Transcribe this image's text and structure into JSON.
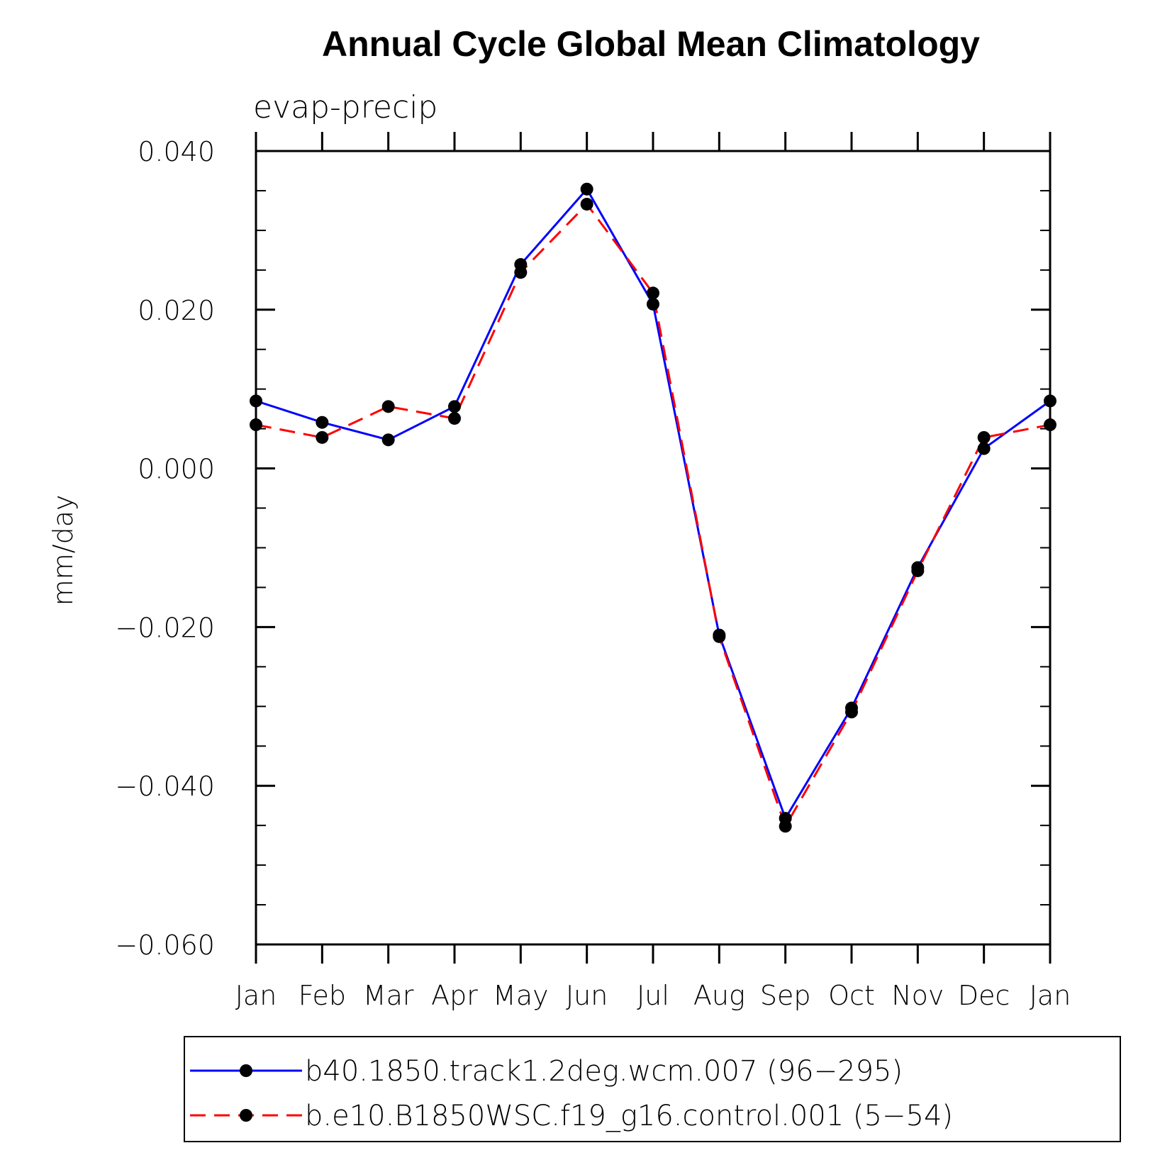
{
  "chart_data": {
    "type": "line",
    "title": "Annual Cycle Global Mean Climatology",
    "subtitle": "evap-precip",
    "ylabel": "mm/day",
    "xlabel": "",
    "ylim": [
      -0.06,
      0.04
    ],
    "yticks": [
      "0.040",
      "0.020",
      "0.000",
      "−0.020",
      "−0.040",
      "−0.060"
    ],
    "ytick_values": [
      0.04,
      0.02,
      0.0,
      -0.02,
      -0.04,
      -0.06
    ],
    "categories": [
      "Jan",
      "Feb",
      "Mar",
      "Apr",
      "May",
      "Jun",
      "Jul",
      "Aug",
      "Sep",
      "Oct",
      "Nov",
      "Dec",
      "Jan"
    ],
    "grid": false,
    "legend_position": "bottom",
    "series": [
      {
        "name": "b40.1850.track1.2deg.wcm.007 (96−295)",
        "color": "#0000ff",
        "dash": "solid",
        "marker": "filled-circle",
        "values": [
          0.0085,
          0.0058,
          0.0036,
          0.0078,
          0.0257,
          0.0352,
          0.0207,
          -0.021,
          -0.0441,
          -0.0302,
          -0.0125,
          0.0025,
          0.0085
        ]
      },
      {
        "name": "b.e10.B1850WSC.f19_g16.control.001 (5−54)",
        "color": "#ff0000",
        "dash": "dashed",
        "marker": "filled-circle",
        "values": [
          0.0055,
          0.0039,
          0.0078,
          0.0063,
          0.0247,
          0.0333,
          0.0221,
          -0.0212,
          -0.0451,
          -0.0307,
          -0.0129,
          0.0039,
          0.0055
        ]
      }
    ]
  }
}
